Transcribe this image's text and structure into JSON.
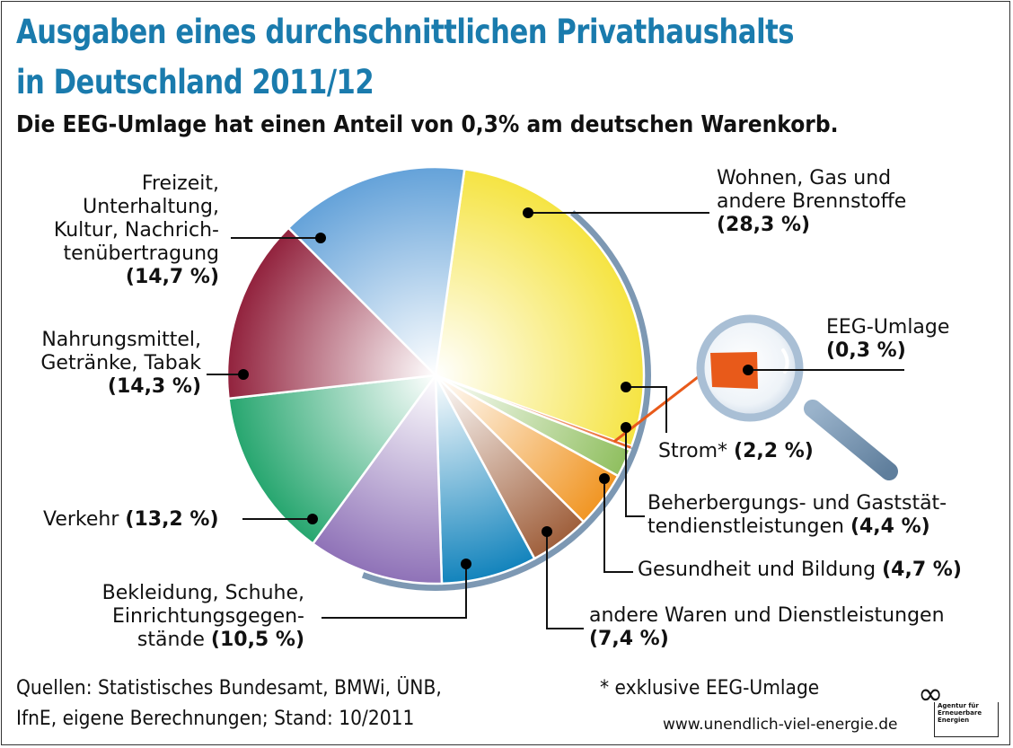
{
  "header": {
    "title_line1": "Ausgaben eines durchschnittlichen Privathaushalts",
    "title_line2": "in Deutschland 2011/12",
    "subtitle": "Die EEG-Umlage hat einen Anteil von 0,3% am deutschen Warenkorb."
  },
  "chart_data": {
    "type": "pie",
    "title": "Ausgaben eines durchschnittlichen Privathaushalts in Deutschland 2011/12",
    "subtitle": "Die EEG-Umlage hat einen Anteil von 0,3% am deutschen Warenkorb.",
    "unit": "%",
    "start": "12 o'clock, clockwise",
    "slices": [
      {
        "key": "wohnen",
        "label": "Wohnen, Gas und andere Brennstoffe",
        "value": 28.3,
        "color": "#f5e33c"
      },
      {
        "key": "eeg",
        "label": "EEG-Umlage",
        "value": 0.3,
        "color": "#e85a1a"
      },
      {
        "key": "strom",
        "label": "Strom*",
        "value": 2.2,
        "color": "#8cbd5a"
      },
      {
        "key": "beherbergung",
        "label": "Beherbergungs- und Gaststättendienstleistungen",
        "value": 4.4,
        "color": "#f0921c"
      },
      {
        "key": "gesundheit",
        "label": "Gesundheit und Bildung",
        "value": 4.7,
        "color": "#9c5a35"
      },
      {
        "key": "andere",
        "label": "andere Waren und Dienstleistungen",
        "value": 7.4,
        "color": "#0a7fba"
      },
      {
        "key": "bekleidung",
        "label": "Bekleidung, Schuhe, Einrichtungsgegenstände",
        "value": 10.5,
        "color": "#8b6db5"
      },
      {
        "key": "verkehr",
        "label": "Verkehr",
        "value": 13.2,
        "color": "#1fa36a"
      },
      {
        "key": "nahrung",
        "label": "Nahrungsmittel, Getränke, Tabak",
        "value": 14.3,
        "color": "#8e1a36"
      },
      {
        "key": "freizeit",
        "label": "Freizeit, Unterhaltung, Kultur, Nachrichtenübertragung",
        "value": 14.7,
        "color": "#5f9fd8"
      }
    ]
  },
  "labels": {
    "wohnen": {
      "l1": "Wohnen, Gas und",
      "l2": "andere Brennstoffe",
      "pct": "(28,3 %)"
    },
    "eeg": {
      "l1": "EEG-Umlage",
      "pct": "(0,3 %)"
    },
    "strom": {
      "l1": "Strom*",
      "pct": "(2,2 %)"
    },
    "beherbergung": {
      "l1": "Beherbergungs- und Gaststät-",
      "l2": "tendienstleistungen",
      "pct": "(4,4 %)"
    },
    "gesundheit": {
      "l1": "Gesundheit und Bildung",
      "pct": "(4,7 %)"
    },
    "andere": {
      "l1": "andere Waren und Dienstleistungen",
      "pct": "(7,4 %)"
    },
    "bekleidung": {
      "l1": "Bekleidung, Schuhe,",
      "l2": "Einrichtungsgegen-",
      "l3": "stände",
      "pct": "(10,5 %)"
    },
    "verkehr": {
      "l1": "Verkehr",
      "pct": "(13,2 %)"
    },
    "nahrung": {
      "l1": "Nahrungsmittel,",
      "l2": "Getränke, Tabak",
      "pct": "(14,3 %)"
    },
    "freizeit": {
      "l1": "Freizeit,",
      "l2": "Unterhaltung,",
      "l3": "Kultur, Nachrich-",
      "l4": "tenübertragung",
      "pct": "(14,7 %)"
    }
  },
  "footer": {
    "sources_l1": "Quellen: Statistisches Bundesamt, BMWi, ÜNB,",
    "sources_l2": "IfnE, eigene Berechnungen; Stand: 10/2011",
    "footnote": "* exklusive EEG-Umlage",
    "url": "www.unendlich-viel-energie.de",
    "logo_symbol": "∞",
    "logo_l1": "Agentur für",
    "logo_l2": "Erneuerbare",
    "logo_l3": "Energien"
  }
}
